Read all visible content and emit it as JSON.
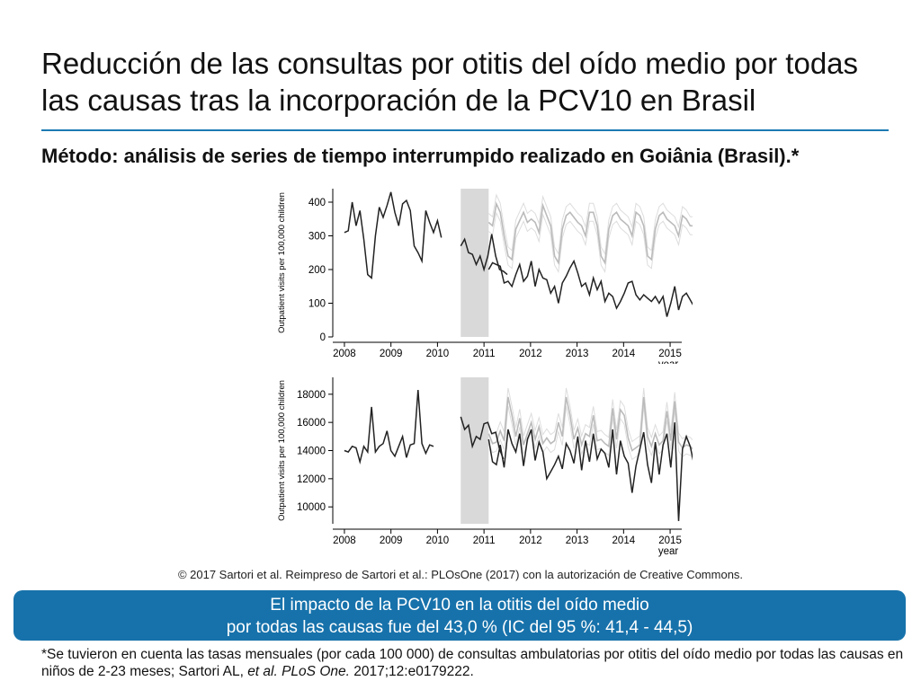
{
  "title": "Reducción de las consultas por otitis del oído medio por todas las causas tras la incorporación de la PCV10 en Brasil",
  "subtitle": "Método: análisis de series de tiempo interrumpido realizado en Goiânia (Brasil).*",
  "credit": "© 2017 Sartori et al. Reimpreso de Sartori et al.: PLOsOne (2017) con la autorización de Creative Commons.",
  "banner": {
    "line1": "El impacto de la PCV10 en la otitis del oído medio",
    "line2": "por todas las causas fue del 43,0 % (IC del 95 %: 41,4 - 44,5)"
  },
  "footnote": {
    "part1": "*Se tuvieron en cuenta las tasas mensuales (por cada 100 000) de consultas ambulatorias por otitis del oído medio por todas las causas en niños de 2-23 meses; Sartori AL, ",
    "italic1": "et al. PLoS One.",
    "part2": " 2017;12:e0179222."
  },
  "colors": {
    "accent": "#1772ab",
    "observed": "#222222",
    "counterfactual": "#bbbbbb",
    "ci": "#dddddd",
    "shade": "#d9d9d9"
  },
  "chart_data": [
    {
      "type": "line",
      "ylabel": "Outpatient visits per 100,000 children",
      "xlabel": "year",
      "xticks": [
        2008,
        2009,
        2010,
        2011,
        2012,
        2013,
        2014,
        2015
      ],
      "xlim": [
        2007.75,
        2015.25
      ],
      "yticks": [
        0,
        100,
        200,
        300,
        400
      ],
      "ylim": [
        0,
        440
      ],
      "shaded_interval": [
        2010.5,
        2011.1
      ],
      "series": [
        {
          "role": "observed",
          "x_start": 2008,
          "x_step": 0.0833,
          "values": [
            310,
            315,
            400,
            330,
            375,
            290,
            185,
            175,
            300,
            385,
            355,
            390,
            430,
            370,
            330,
            395,
            405,
            375,
            270,
            250,
            225,
            375,
            340,
            310,
            345,
            295
          ]
        },
        {
          "role": "observed",
          "x_start": 2010.5,
          "x_step": 0.0833,
          "values": [
            270,
            290,
            250,
            245,
            215,
            240,
            200,
            240,
            305,
            240,
            200,
            195,
            185
          ]
        },
        {
          "role": "observed",
          "x_start": 2011.1,
          "x_step": 0.0833,
          "values": [
            200,
            220,
            215,
            210,
            160,
            165,
            150,
            185,
            215,
            165,
            180,
            225,
            150,
            200,
            175,
            170,
            130,
            150,
            100,
            160,
            180,
            205,
            225,
            190,
            150,
            160,
            125,
            175,
            140,
            165,
            105,
            130,
            120,
            85,
            105,
            130,
            160,
            165,
            125,
            110,
            125,
            115,
            105,
            120,
            100,
            120,
            60,
            100,
            150,
            80,
            120,
            130,
            110,
            90
          ]
        },
        {
          "role": "counterfactual",
          "x_start": 2011.1,
          "x_step": 0.0833,
          "values": [
            340,
            330,
            395,
            370,
            300,
            240,
            230,
            320,
            345,
            370,
            340,
            350,
            340,
            310,
            390,
            360,
            330,
            240,
            220,
            320,
            360,
            370,
            355,
            340,
            330,
            300,
            370,
            370,
            330,
            240,
            220,
            320,
            360,
            370,
            350,
            340,
            330,
            300,
            370,
            360,
            330,
            240,
            230,
            320,
            360,
            370,
            350,
            340,
            330,
            300,
            360,
            350,
            330,
            330
          ]
        }
      ]
    },
    {
      "type": "line",
      "ylabel": "Outpatient visits per 100,000 children",
      "xlabel": "year",
      "xticks": [
        2008,
        2009,
        2010,
        2011,
        2012,
        2013,
        2014,
        2015
      ],
      "xlim": [
        2007.75,
        2015.25
      ],
      "yticks": [
        10000,
        12000,
        14000,
        16000,
        18000
      ],
      "ylim": [
        8800,
        19200
      ],
      "shaded_interval": [
        2010.5,
        2011.1
      ],
      "series": [
        {
          "role": "observed",
          "x_start": 2008,
          "x_step": 0.0833,
          "values": [
            14000,
            13900,
            14300,
            14200,
            13200,
            14300,
            13900,
            17100,
            13900,
            14300,
            14500,
            15400,
            14000,
            13600,
            14300,
            15000,
            13500,
            14400,
            14500,
            18300,
            14500,
            13800,
            14400,
            14300
          ]
        },
        {
          "role": "observed",
          "x_start": 2010.5,
          "x_step": 0.0833,
          "values": [
            16400,
            15500,
            15800,
            14300,
            15000,
            14800,
            15900,
            16000,
            15200,
            15300,
            14100,
            13400
          ]
        },
        {
          "role": "observed",
          "x_start": 2011.1,
          "x_step": 0.0833,
          "values": [
            14800,
            13200,
            13000,
            14400,
            12800,
            15500,
            14500,
            13900,
            15200,
            12900,
            14800,
            15500,
            13300,
            14600,
            13900,
            12000,
            12500,
            13000,
            13600,
            12700,
            14500,
            14000,
            13100,
            15000,
            12600,
            14700,
            13200,
            15200,
            13400,
            14100,
            13800,
            12800,
            15500,
            12300,
            14700,
            13600,
            13100,
            11000,
            12900,
            14100,
            15300,
            13000,
            11700,
            14600,
            12300,
            14400,
            15200,
            12800,
            16000,
            9000,
            14100,
            15000,
            14300,
            13000
          ]
        },
        {
          "role": "counterfactual",
          "x_start": 2011.1,
          "x_step": 0.0833,
          "values": [
            15200,
            14500,
            14600,
            15400,
            14700,
            17800,
            16500,
            15000,
            16300,
            14400,
            15200,
            16000,
            14800,
            15700,
            14500,
            14900,
            14500,
            14700,
            16000,
            15000,
            17800,
            16500,
            14800,
            15600,
            14400,
            15200,
            15000,
            16500,
            14700,
            14800,
            14500,
            14300,
            17000,
            14800,
            16900,
            16500,
            14900,
            14000,
            14200,
            14400,
            17800,
            15000,
            14300,
            15200,
            14400,
            14700,
            16800,
            14700,
            17500,
            14600,
            14200,
            14400,
            14300,
            14000
          ]
        }
      ]
    }
  ]
}
